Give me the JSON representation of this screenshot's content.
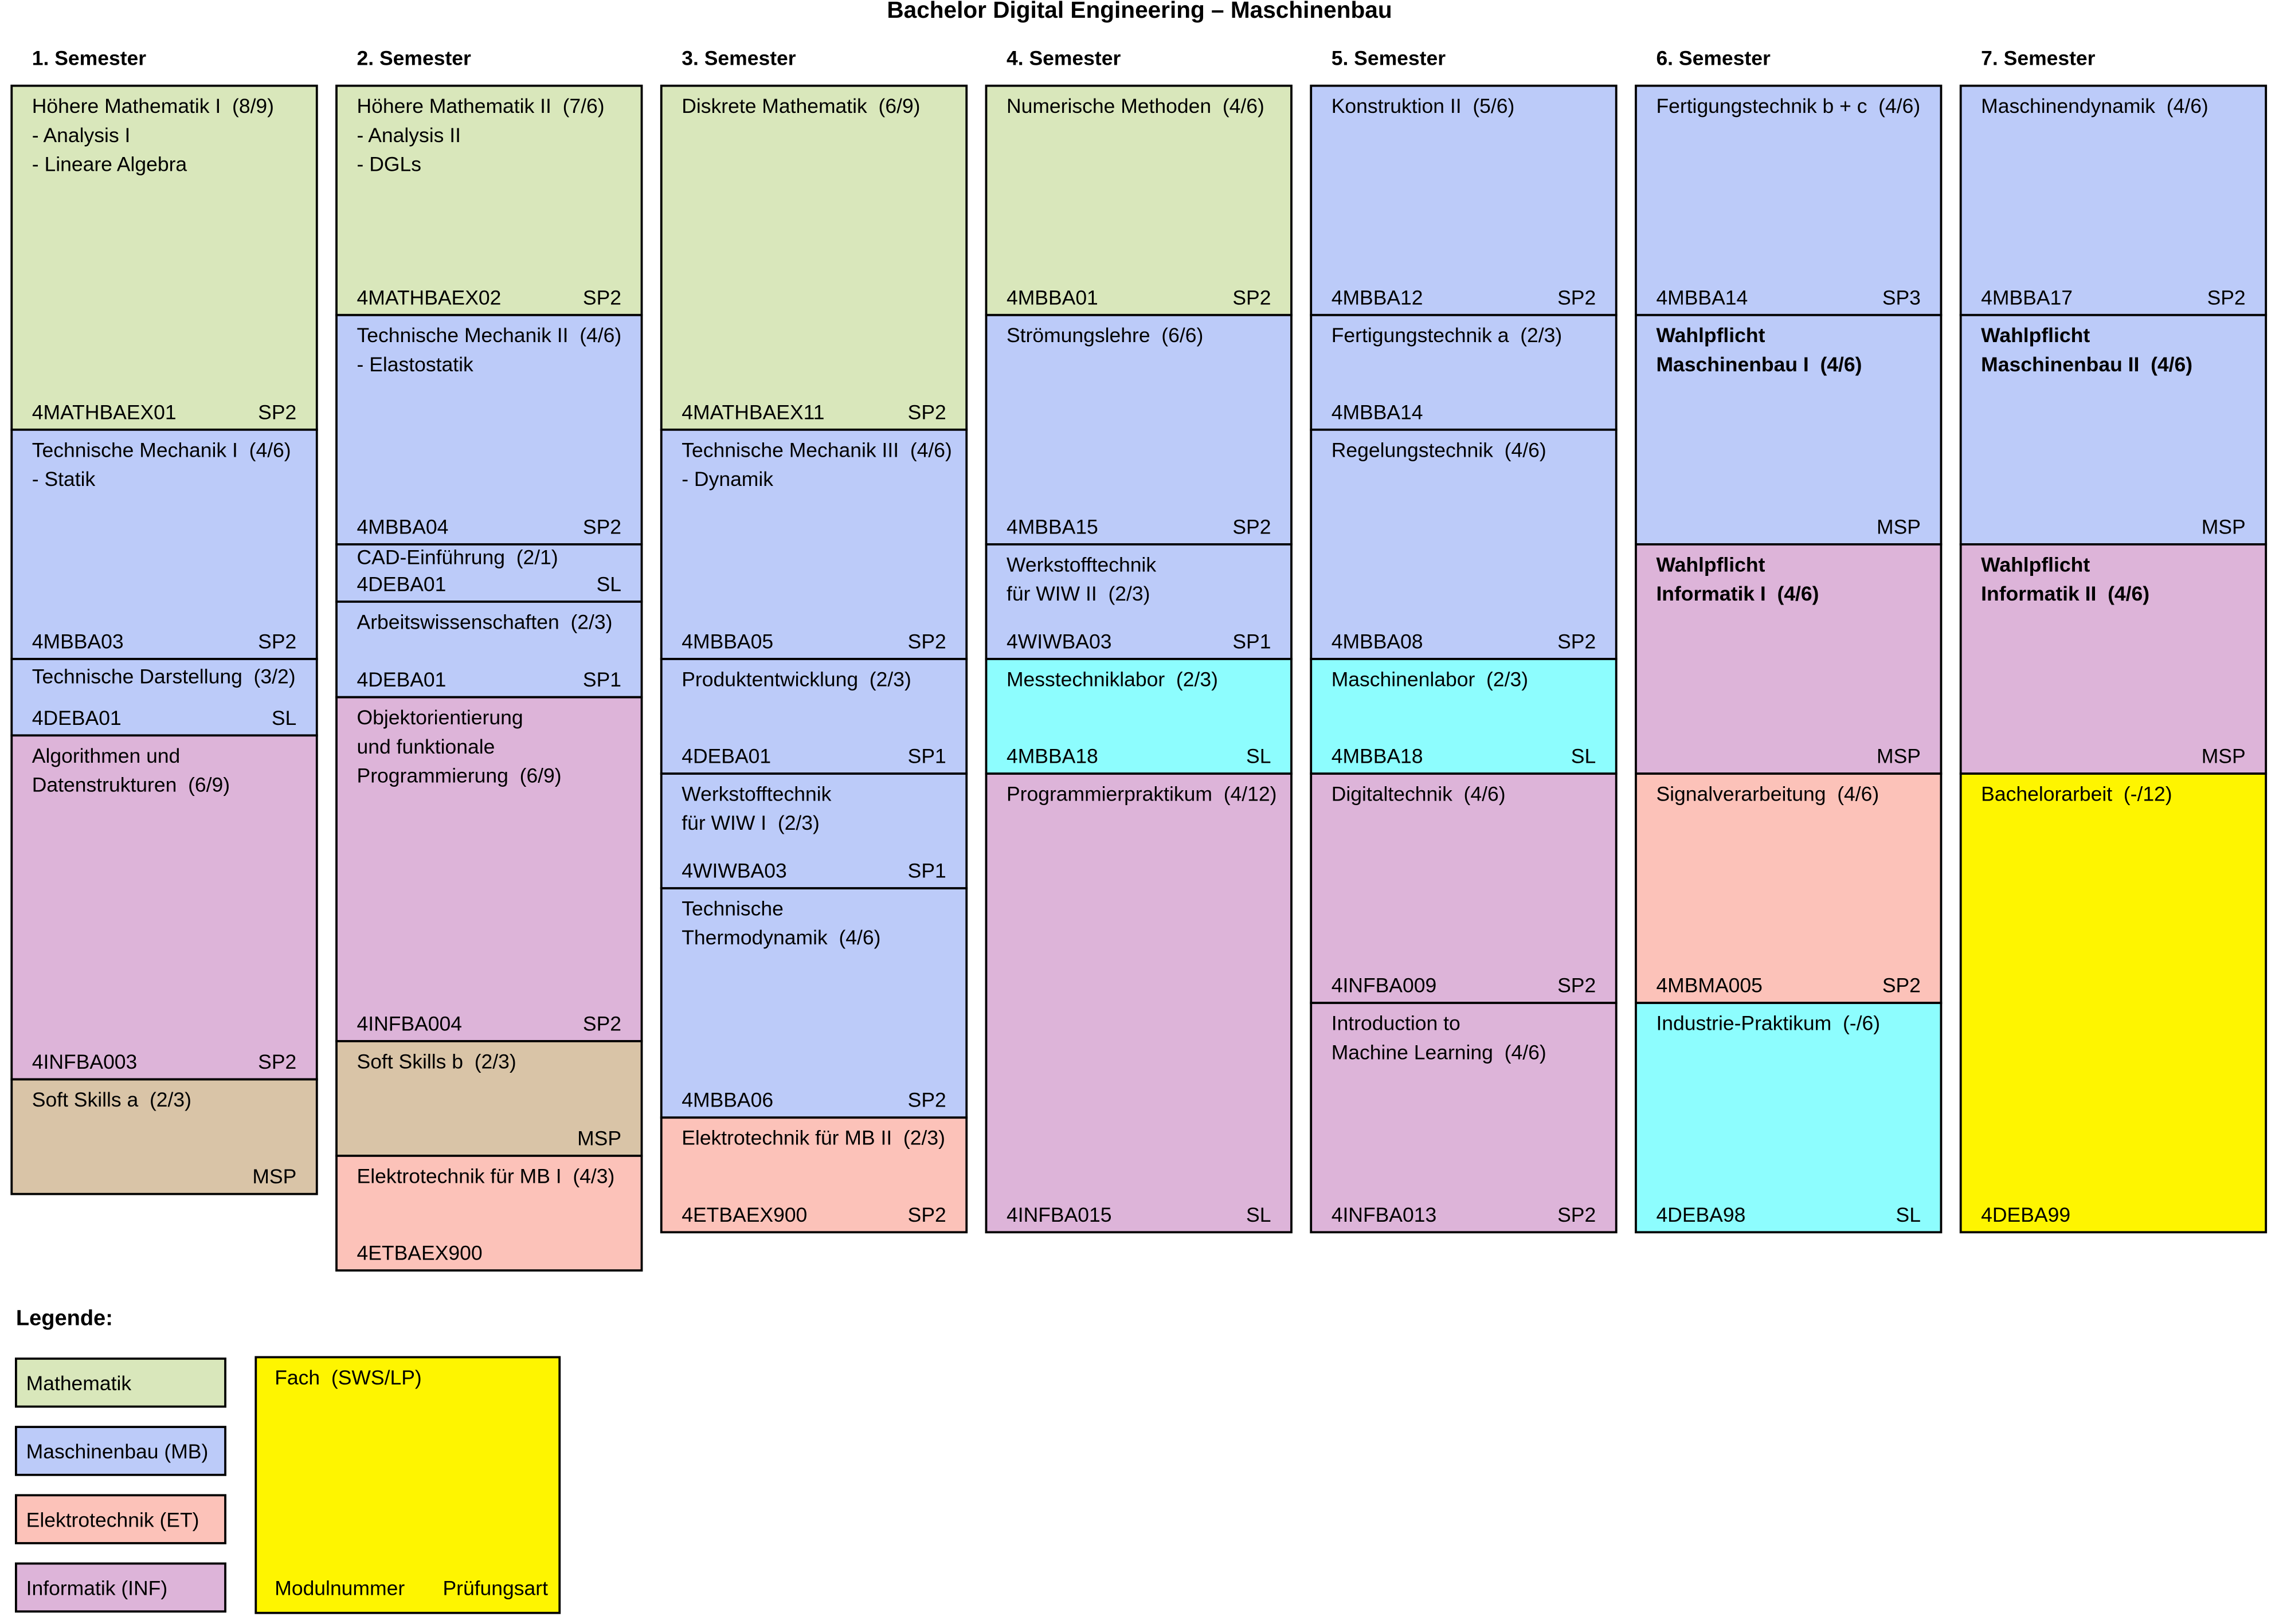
{
  "title": "Bachelor Digital Engineering – Maschinenbau",
  "semesters": [
    {
      "label": "1. Semester",
      "modules": [
        {
          "lines": [
            "Höhere Mathematik I  (8/9)",
            "- Analysis I",
            "- Lineare Algebra"
          ],
          "code": "4MATHBAEX01",
          "exam": "SP2",
          "color": "#d9e7bb"
        },
        {
          "lines": [
            "Technische Mechanik I  (4/6)",
            "- Statik"
          ],
          "code": "4MBBA03",
          "exam": "SP2",
          "color": "#bccbf9"
        },
        {
          "lines": [
            "Technische Darstellung  (3/2)"
          ],
          "code": "4DEBA01",
          "exam": "SL",
          "color": "#bccbf9"
        },
        {
          "lines": [
            "Algorithmen und",
            "Datenstrukturen  (6/9)"
          ],
          "code": "4INFBA003",
          "exam": "SP2",
          "color": "#ddb4d9"
        },
        {
          "lines": [
            "Soft Skills a  (2/3)"
          ],
          "exam": "MSP",
          "color": "#d9c4a7"
        }
      ]
    },
    {
      "label": "2. Semester",
      "modules": [
        {
          "lines": [
            "Höhere Mathematik II  (7/6)",
            "- Analysis II",
            "- DGLs"
          ],
          "code": "4MATHBAEX02",
          "exam": "SP2",
          "color": "#d9e7bb"
        },
        {
          "lines": [
            "Technische Mechanik II  (4/6)",
            "- Elastostatik"
          ],
          "code": "4MBBA04",
          "exam": "SP2",
          "color": "#bccbf9"
        },
        {
          "lines": [
            "CAD-Einführung  (2/1)"
          ],
          "code": "4DEBA01",
          "exam": "SL",
          "color": "#bccbf9"
        },
        {
          "lines": [
            "Arbeitswissenschaften  (2/3)"
          ],
          "code": "4DEBA01",
          "exam": "SP1",
          "color": "#bccbf9"
        },
        {
          "lines": [
            "Objektorientierung",
            "und funktionale",
            "Programmierung  (6/9)"
          ],
          "code": "4INFBA004",
          "exam": "SP2",
          "color": "#ddb4d9"
        },
        {
          "lines": [
            "Soft Skills b  (2/3)"
          ],
          "exam": "MSP",
          "color": "#d9c4a7"
        },
        {
          "lines": [
            "Elektrotechnik für MB I  (4/3)"
          ],
          "code": "4ETBAEX900",
          "color": "#fcc2b9"
        }
      ]
    },
    {
      "label": "3. Semester",
      "modules": [
        {
          "lines": [
            "Diskrete Mathematik  (6/9)"
          ],
          "code": "4MATHBAEX11",
          "exam": "SP2",
          "color": "#d9e7bb"
        },
        {
          "lines": [
            "Technische Mechanik III  (4/6)",
            "- Dynamik"
          ],
          "code": "4MBBA05",
          "exam": "SP2",
          "color": "#bccbf9"
        },
        {
          "lines": [
            "Produktentwicklung  (2/3)"
          ],
          "code": "4DEBA01",
          "exam": "SP1",
          "color": "#bccbf9"
        },
        {
          "lines": [
            "Werkstofftechnik",
            "für WIW I  (2/3)"
          ],
          "code": "4WIWBA03",
          "exam": "SP1",
          "color": "#bccbf9"
        },
        {
          "lines": [
            "Technische",
            "Thermodynamik  (4/6)"
          ],
          "code": "4MBBA06",
          "exam": "SP2",
          "color": "#bccbf9"
        },
        {
          "lines": [
            "Elektrotechnik für MB II  (2/3)"
          ],
          "code": "4ETBAEX900",
          "exam": "SP2",
          "color": "#fcc2b9"
        }
      ]
    },
    {
      "label": "4. Semester",
      "modules": [
        {
          "lines": [
            "Numerische Methoden  (4/6)"
          ],
          "code": "4MBBA01",
          "exam": "SP2",
          "color": "#d9e7bb"
        },
        {
          "lines": [
            "Strömungslehre  (6/6)"
          ],
          "code": "4MBBA15",
          "exam": "SP2",
          "color": "#bccbf9"
        },
        {
          "lines": [
            "Werkstofftechnik",
            "für WIW II  (2/3)"
          ],
          "code": "4WIWBA03",
          "exam": "SP1",
          "color": "#bccbf9"
        },
        {
          "lines": [
            "Messtechniklabor  (2/3)"
          ],
          "code": "4MBBA18",
          "exam": "SL",
          "color": "#8dfdfe"
        },
        {
          "lines": [
            "Programmierpraktikum  (4/12)"
          ],
          "code": "4INFBA015",
          "exam": "SL",
          "color": "#ddb4d9"
        }
      ]
    },
    {
      "label": "5. Semester",
      "modules": [
        {
          "lines": [
            "Konstruktion II  (5/6)"
          ],
          "code": "4MBBA12",
          "exam": "SP2",
          "color": "#bccbf9"
        },
        {
          "lines": [
            "Fertigungstechnik a  (2/3)"
          ],
          "code": "4MBBA14",
          "color": "#bccbf9"
        },
        {
          "lines": [
            "Regelungstechnik  (4/6)"
          ],
          "code": "4MBBA08",
          "exam": "SP2",
          "color": "#bccbf9"
        },
        {
          "lines": [
            "Maschinenlabor  (2/3)"
          ],
          "code": "4MBBA18",
          "exam": "SL",
          "color": "#8dfdfe"
        },
        {
          "lines": [
            "Digitaltechnik  (4/6)"
          ],
          "code": "4INFBA009",
          "exam": "SP2",
          "color": "#ddb4d9"
        },
        {
          "lines": [
            "Introduction to",
            "Machine Learning  (4/6)"
          ],
          "code": "4INFBA013",
          "exam": "SP2",
          "color": "#ddb4d9"
        }
      ]
    },
    {
      "label": "6. Semester",
      "modules": [
        {
          "lines": [
            "Fertigungstechnik b + c  (4/6)"
          ],
          "code": "4MBBA14",
          "exam": "SP3",
          "color": "#bccbf9"
        },
        {
          "lines": [
            "Wahlpflicht",
            "Maschinenbau I  (4/6)"
          ],
          "exam": "MSP",
          "color": "#bccbf9",
          "bold": true
        },
        {
          "lines": [
            "Wahlpflicht",
            "Informatik I  (4/6)"
          ],
          "exam": "MSP",
          "color": "#ddb4d9",
          "bold": true
        },
        {
          "lines": [
            "Signalverarbeitung  (4/6)"
          ],
          "code": "4MBMA005",
          "exam": "SP2",
          "color": "#fcc2b9"
        },
        {
          "lines": [
            "Industrie-Praktikum  (-/6)"
          ],
          "code": "4DEBA98",
          "exam": "SL",
          "color": "#8dfdfe"
        }
      ]
    },
    {
      "label": "7. Semester",
      "modules": [
        {
          "lines": [
            "Maschinendynamik  (4/6)"
          ],
          "code": "4MBBA17",
          "exam": "SP2",
          "color": "#bccbf9"
        },
        {
          "lines": [
            "Wahlpflicht",
            "Maschinenbau II  (4/6)"
          ],
          "exam": "MSP",
          "color": "#bccbf9",
          "bold": true
        },
        {
          "lines": [
            "Wahlpflicht",
            "Informatik II  (4/6)"
          ],
          "exam": "MSP",
          "color": "#ddb4d9",
          "bold": true
        },
        {
          "lines": [
            "Bachelorarbeit  (-/12)"
          ],
          "code": "4DEBA99",
          "color": "#fef500"
        }
      ]
    }
  ],
  "legend": {
    "title": "Legende:",
    "items": [
      {
        "name": "Mathematik",
        "color": "#d9e7bb"
      },
      {
        "name": "Maschinenbau (MB)",
        "color": "#bccbf9"
      },
      {
        "name": "Elektrotechnik (ET)",
        "color": "#fcc2b9"
      },
      {
        "name": "Informatik (INF)",
        "color": "#ddb4d9"
      }
    ],
    "key": {
      "subject": "Fach  (SWS/LP)",
      "code": "Modulnummer",
      "exam": "Prüfungsart",
      "color": "#fef500"
    }
  }
}
